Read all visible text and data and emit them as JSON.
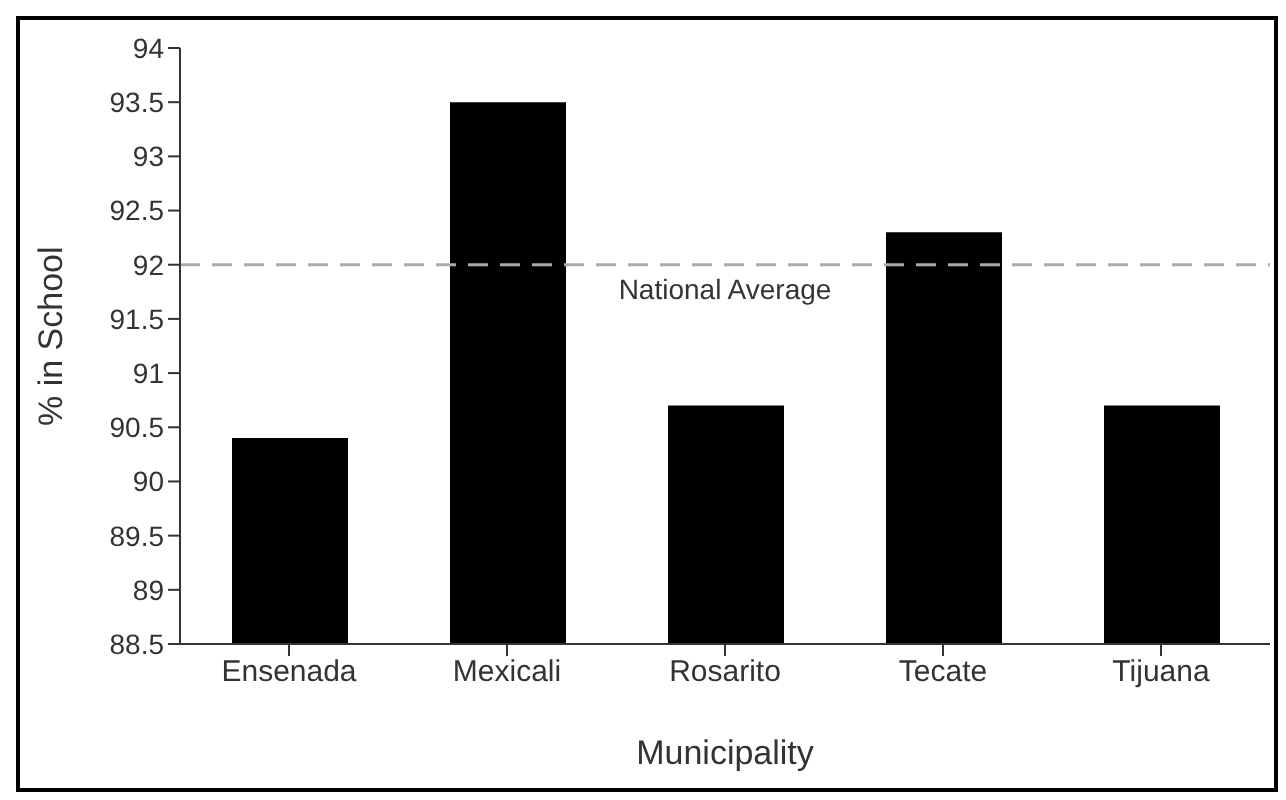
{
  "chart_data": {
    "type": "bar",
    "xlabel": "Municipality",
    "ylabel": "% in School",
    "categories": [
      "Ensenada",
      "Mexicali",
      "Rosarito",
      "Tecate",
      "Tijuana"
    ],
    "values": [
      90.4,
      93.5,
      90.7,
      92.3,
      90.7
    ],
    "color": "#000000",
    "ylim": [
      88.5,
      94
    ],
    "yticks": [
      88.5,
      89,
      89.5,
      90,
      90.5,
      91,
      91.5,
      92,
      92.5,
      93,
      93.5,
      94
    ],
    "ref_lines": [
      {
        "axis": "y",
        "value": 92,
        "label": "National Average",
        "color": "#aaaaaa",
        "line_style": "dashed"
      }
    ],
    "grid": false,
    "legend": false
  }
}
